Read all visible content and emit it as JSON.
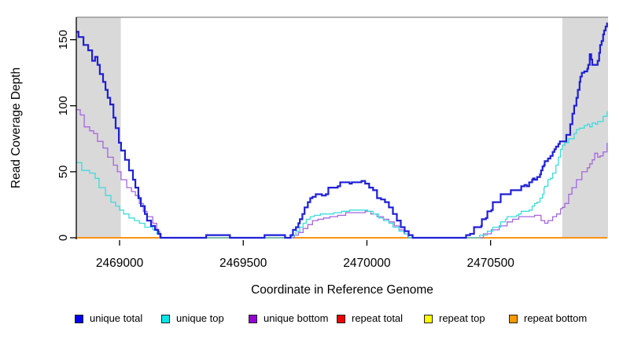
{
  "figure": {
    "x_axis_title": "Coordinate in Reference Genome",
    "y_axis_title": "Read Coverage Depth"
  },
  "legend": {
    "items": [
      {
        "label": "unique total",
        "color": "#0000EE"
      },
      {
        "label": "unique top",
        "color": "#00E5EE"
      },
      {
        "label": "unique bottom",
        "color": "#9400D3"
      },
      {
        "label": "repeat total",
        "color": "#EE0000"
      },
      {
        "label": "repeat top",
        "color": "#FFFF00"
      },
      {
        "label": "repeat bottom",
        "color": "#FF9900"
      }
    ]
  },
  "chart_data": {
    "type": "line",
    "title": "",
    "xlabel": "Coordinate in Reference Genome",
    "ylabel": "Read Coverage Depth",
    "xlim": [
      2468825,
      2470975
    ],
    "ylim": [
      0,
      167
    ],
    "x_ticks": [
      2469000,
      2469500,
      2470000,
      2470500
    ],
    "y_ticks": [
      0,
      50,
      100,
      150
    ],
    "grid": false,
    "legend_position": "bottom",
    "step_interpolation": true,
    "axis_color": "#000000",
    "top_border_color": "#999999",
    "shaded_band_color": "#d9d9d9",
    "shaded_regions": [
      {
        "from": 2468825,
        "to": 2469005
      },
      {
        "from": 2470790,
        "to": 2470975
      }
    ],
    "draw_order": [
      "repeat total",
      "repeat top",
      "repeat bottom",
      "unique bottom",
      "unique top",
      "unique total"
    ],
    "series": [
      {
        "name": "unique total",
        "line_color": "#1f1fd6",
        "line_width": 2.2,
        "points": [
          [
            2468825,
            156
          ],
          [
            2468834,
            152
          ],
          [
            2468854,
            146
          ],
          [
            2468873,
            142
          ],
          [
            2468889,
            134
          ],
          [
            2468901,
            137
          ],
          [
            2468911,
            131
          ],
          [
            2468920,
            124
          ],
          [
            2468933,
            118
          ],
          [
            2468943,
            112
          ],
          [
            2468952,
            106
          ],
          [
            2468962,
            101
          ],
          [
            2468975,
            91
          ],
          [
            2468984,
            83
          ],
          [
            2468997,
            72
          ],
          [
            2469006,
            66
          ],
          [
            2469022,
            59
          ],
          [
            2469038,
            51
          ],
          [
            2469054,
            44
          ],
          [
            2469064,
            38
          ],
          [
            2469076,
            30
          ],
          [
            2469086,
            24
          ],
          [
            2469102,
            18
          ],
          [
            2469111,
            13
          ],
          [
            2469127,
            9
          ],
          [
            2469143,
            6
          ],
          [
            2469156,
            3
          ],
          [
            2469166,
            0
          ],
          [
            2469350,
            0
          ],
          [
            2469350,
            2
          ],
          [
            2469446,
            2
          ],
          [
            2469446,
            0
          ],
          [
            2469586,
            0
          ],
          [
            2469586,
            2
          ],
          [
            2469669,
            2
          ],
          [
            2469669,
            0
          ],
          [
            2469685,
            0
          ],
          [
            2469691,
            2
          ],
          [
            2469701,
            6
          ],
          [
            2469713,
            8
          ],
          [
            2469723,
            11
          ],
          [
            2469729,
            14
          ],
          [
            2469739,
            18
          ],
          [
            2469748,
            23
          ],
          [
            2469761,
            27
          ],
          [
            2469771,
            30
          ],
          [
            2469780,
            31
          ],
          [
            2469793,
            33
          ],
          [
            2469818,
            32
          ],
          [
            2469834,
            33
          ],
          [
            2469844,
            38
          ],
          [
            2469882,
            39
          ],
          [
            2469892,
            42
          ],
          [
            2469930,
            41
          ],
          [
            2469939,
            42
          ],
          [
            2469978,
            43
          ],
          [
            2469993,
            41
          ],
          [
            2470009,
            38
          ],
          [
            2470025,
            36
          ],
          [
            2470041,
            30
          ],
          [
            2470057,
            29
          ],
          [
            2470073,
            27
          ],
          [
            2470089,
            23
          ],
          [
            2470105,
            18
          ],
          [
            2470121,
            13
          ],
          [
            2470137,
            8
          ],
          [
            2470153,
            5
          ],
          [
            2470169,
            2
          ],
          [
            2470185,
            0
          ],
          [
            2470392,
            0
          ],
          [
            2470401,
            2
          ],
          [
            2470417,
            3
          ],
          [
            2470433,
            8
          ],
          [
            2470462,
            9
          ],
          [
            2470465,
            14
          ],
          [
            2470481,
            15
          ],
          [
            2470487,
            20
          ],
          [
            2470503,
            21
          ],
          [
            2470509,
            27
          ],
          [
            2470535,
            27
          ],
          [
            2470541,
            33
          ],
          [
            2470573,
            33
          ],
          [
            2470582,
            36
          ],
          [
            2470614,
            36
          ],
          [
            2470624,
            39
          ],
          [
            2470637,
            40
          ],
          [
            2470646,
            39
          ],
          [
            2470656,
            42
          ],
          [
            2470668,
            44
          ],
          [
            2470672,
            45
          ],
          [
            2470678,
            44
          ],
          [
            2470688,
            46
          ],
          [
            2470700,
            48
          ],
          [
            2470704,
            51
          ],
          [
            2470710,
            54
          ],
          [
            2470716,
            55
          ],
          [
            2470719,
            58
          ],
          [
            2470732,
            60
          ],
          [
            2470742,
            62
          ],
          [
            2470751,
            65
          ],
          [
            2470758,
            67
          ],
          [
            2470764,
            69
          ],
          [
            2470774,
            71
          ],
          [
            2470780,
            73
          ],
          [
            2470806,
            78
          ],
          [
            2470822,
            86
          ],
          [
            2470831,
            94
          ],
          [
            2470838,
            100
          ],
          [
            2470847,
            106
          ],
          [
            2470853,
            112
          ],
          [
            2470860,
            118
          ],
          [
            2470863,
            122
          ],
          [
            2470869,
            125
          ],
          [
            2470879,
            126
          ],
          [
            2470891,
            128
          ],
          [
            2470895,
            131
          ],
          [
            2470901,
            139
          ],
          [
            2470907,
            135
          ],
          [
            2470911,
            131
          ],
          [
            2470927,
            131
          ],
          [
            2470933,
            134
          ],
          [
            2470939,
            140
          ],
          [
            2470943,
            146
          ],
          [
            2470949,
            149
          ],
          [
            2470955,
            154
          ],
          [
            2470959,
            157
          ],
          [
            2470965,
            160
          ],
          [
            2470971,
            163
          ]
        ]
      },
      {
        "name": "unique top",
        "line_color": "#3cdcdc",
        "line_width": 1.3,
        "points": [
          [
            2468825,
            57
          ],
          [
            2468847,
            51
          ],
          [
            2468879,
            49
          ],
          [
            2468901,
            45
          ],
          [
            2468917,
            38
          ],
          [
            2468943,
            32
          ],
          [
            2468965,
            27
          ],
          [
            2468984,
            24
          ],
          [
            2469000,
            21
          ],
          [
            2469016,
            18
          ],
          [
            2469038,
            15
          ],
          [
            2469060,
            13
          ],
          [
            2469080,
            11
          ],
          [
            2469102,
            8
          ],
          [
            2469134,
            6
          ],
          [
            2469150,
            3
          ],
          [
            2469166,
            0
          ],
          [
            2469685,
            0
          ],
          [
            2469697,
            2
          ],
          [
            2469713,
            5
          ],
          [
            2469729,
            8
          ],
          [
            2469742,
            11
          ],
          [
            2469755,
            14
          ],
          [
            2469771,
            16
          ],
          [
            2469787,
            17
          ],
          [
            2469812,
            18
          ],
          [
            2469834,
            18
          ],
          [
            2469866,
            19
          ],
          [
            2469898,
            20
          ],
          [
            2469930,
            21
          ],
          [
            2469978,
            21
          ],
          [
            2470003,
            20
          ],
          [
            2470025,
            18
          ],
          [
            2470048,
            15
          ],
          [
            2470067,
            13
          ],
          [
            2470089,
            11
          ],
          [
            2470105,
            8
          ],
          [
            2470130,
            5
          ],
          [
            2470153,
            3
          ],
          [
            2470169,
            0
          ],
          [
            2470424,
            0
          ],
          [
            2470456,
            2
          ],
          [
            2470487,
            5
          ],
          [
            2470509,
            8
          ],
          [
            2470541,
            12
          ],
          [
            2470560,
            14
          ],
          [
            2470567,
            16
          ],
          [
            2470605,
            17
          ],
          [
            2470614,
            18
          ],
          [
            2470624,
            20
          ],
          [
            2470656,
            21
          ],
          [
            2470668,
            24
          ],
          [
            2470678,
            26
          ],
          [
            2470688,
            27
          ],
          [
            2470700,
            30
          ],
          [
            2470710,
            33
          ],
          [
            2470716,
            38
          ],
          [
            2470719,
            39
          ],
          [
            2470732,
            44
          ],
          [
            2470742,
            45
          ],
          [
            2470751,
            49
          ],
          [
            2470764,
            55
          ],
          [
            2470774,
            61
          ],
          [
            2470783,
            67
          ],
          [
            2470790,
            70
          ],
          [
            2470800,
            72
          ],
          [
            2470816,
            75
          ],
          [
            2470838,
            79
          ],
          [
            2470847,
            82
          ],
          [
            2470860,
            83
          ],
          [
            2470879,
            85
          ],
          [
            2470891,
            86
          ],
          [
            2470901,
            84
          ],
          [
            2470911,
            87
          ],
          [
            2470924,
            86
          ],
          [
            2470933,
            88
          ],
          [
            2470955,
            92
          ],
          [
            2470971,
            96
          ]
        ]
      },
      {
        "name": "unique bottom",
        "line_color": "#a566dd",
        "line_width": 1.3,
        "points": [
          [
            2468825,
            97
          ],
          [
            2468841,
            93
          ],
          [
            2468857,
            84
          ],
          [
            2468879,
            81
          ],
          [
            2468895,
            79
          ],
          [
            2468911,
            73
          ],
          [
            2468933,
            68
          ],
          [
            2468952,
            61
          ],
          [
            2468975,
            55
          ],
          [
            2468991,
            50
          ],
          [
            2469006,
            44
          ],
          [
            2469029,
            38
          ],
          [
            2469048,
            35
          ],
          [
            2469064,
            32
          ],
          [
            2469080,
            26
          ],
          [
            2469096,
            20
          ],
          [
            2469111,
            16
          ],
          [
            2469134,
            11
          ],
          [
            2469150,
            5
          ],
          [
            2469162,
            0
          ],
          [
            2469691,
            0
          ],
          [
            2469707,
            2
          ],
          [
            2469723,
            4
          ],
          [
            2469742,
            7
          ],
          [
            2469761,
            10
          ],
          [
            2469780,
            13
          ],
          [
            2469802,
            14
          ],
          [
            2469825,
            15
          ],
          [
            2469850,
            16
          ],
          [
            2469882,
            17
          ],
          [
            2469914,
            19
          ],
          [
            2469962,
            19
          ],
          [
            2469993,
            20
          ],
          [
            2470016,
            18
          ],
          [
            2470041,
            16
          ],
          [
            2470067,
            14
          ],
          [
            2470089,
            12
          ],
          [
            2470111,
            9
          ],
          [
            2470130,
            6
          ],
          [
            2470150,
            3
          ],
          [
            2470166,
            0
          ],
          [
            2470439,
            0
          ],
          [
            2470471,
            3
          ],
          [
            2470503,
            6
          ],
          [
            2470535,
            9
          ],
          [
            2470567,
            12
          ],
          [
            2470589,
            14
          ],
          [
            2470614,
            16
          ],
          [
            2470646,
            16
          ],
          [
            2470678,
            17
          ],
          [
            2470704,
            13
          ],
          [
            2470719,
            11
          ],
          [
            2470732,
            13
          ],
          [
            2470751,
            16
          ],
          [
            2470767,
            18
          ],
          [
            2470783,
            22
          ],
          [
            2470790,
            23
          ],
          [
            2470800,
            26
          ],
          [
            2470816,
            33
          ],
          [
            2470829,
            38
          ],
          [
            2470847,
            44
          ],
          [
            2470869,
            50
          ],
          [
            2470891,
            53
          ],
          [
            2470901,
            56
          ],
          [
            2470911,
            59
          ],
          [
            2470921,
            64
          ],
          [
            2470933,
            61
          ],
          [
            2470943,
            62
          ],
          [
            2470955,
            65
          ],
          [
            2470971,
            72
          ]
        ]
      },
      {
        "name": "repeat total",
        "line_color": "#e60000",
        "line_width": 1.3,
        "points": [
          [
            2468825,
            0
          ],
          [
            2470971,
            0
          ]
        ]
      },
      {
        "name": "repeat top",
        "line_color": "#ffff00",
        "line_width": 1.3,
        "points": [
          [
            2468825,
            0
          ],
          [
            2470971,
            0
          ]
        ]
      },
      {
        "name": "repeat bottom",
        "line_color": "#ff8c00",
        "line_width": 1.8,
        "points": [
          [
            2468825,
            0
          ],
          [
            2470971,
            0
          ]
        ]
      }
    ]
  }
}
